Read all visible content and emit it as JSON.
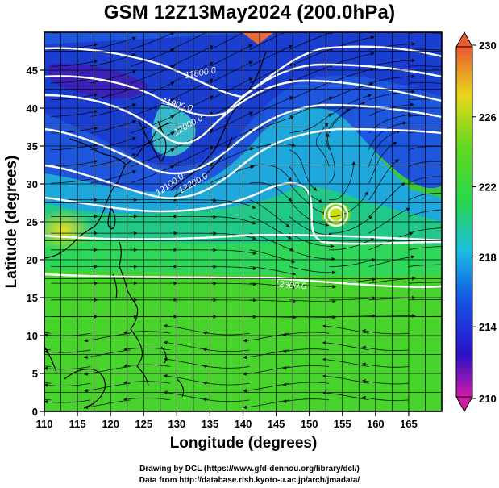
{
  "title": "GSM 12Z13May2024 (200.0hPa)",
  "axes": {
    "xlabel": "Longitude (degrees)",
    "ylabel": "Latitude  (degrees)",
    "x_ticks": [
      "110",
      "115",
      "120",
      "125",
      "130",
      "135",
      "140",
      "145",
      "150",
      "155",
      "160",
      "165"
    ],
    "y_ticks": [
      "0",
      "5",
      "10",
      "15",
      "20",
      "25",
      "30",
      "35",
      "40",
      "45"
    ],
    "xlim": [
      110,
      170
    ],
    "ylim": [
      0,
      50
    ]
  },
  "colorbar": {
    "labels": [
      "230",
      "226",
      "222",
      "218",
      "214",
      "210"
    ],
    "range": [
      210,
      230
    ],
    "colors": [
      "#d21aa8",
      "#2a10c8",
      "#1555e8",
      "#18c0e0",
      "#28d84a",
      "#66d81e",
      "#e8d818",
      "#ea5a30"
    ]
  },
  "contour_labels": [
    "11800.0",
    "11900.0",
    "12000.0",
    "12100.0",
    "12200.0",
    "12300.0",
    "12400.0"
  ],
  "credits": {
    "line1": "Drawing by DCL (https://www.gfd-dennou.org/library/dcl/)",
    "line2": "Data from http://database.rish.kyoto-u.ac.jp/arch/jmadata/"
  },
  "colors": {
    "coast": "#000000",
    "grid": "#000000",
    "contour": "#ffffff"
  }
}
